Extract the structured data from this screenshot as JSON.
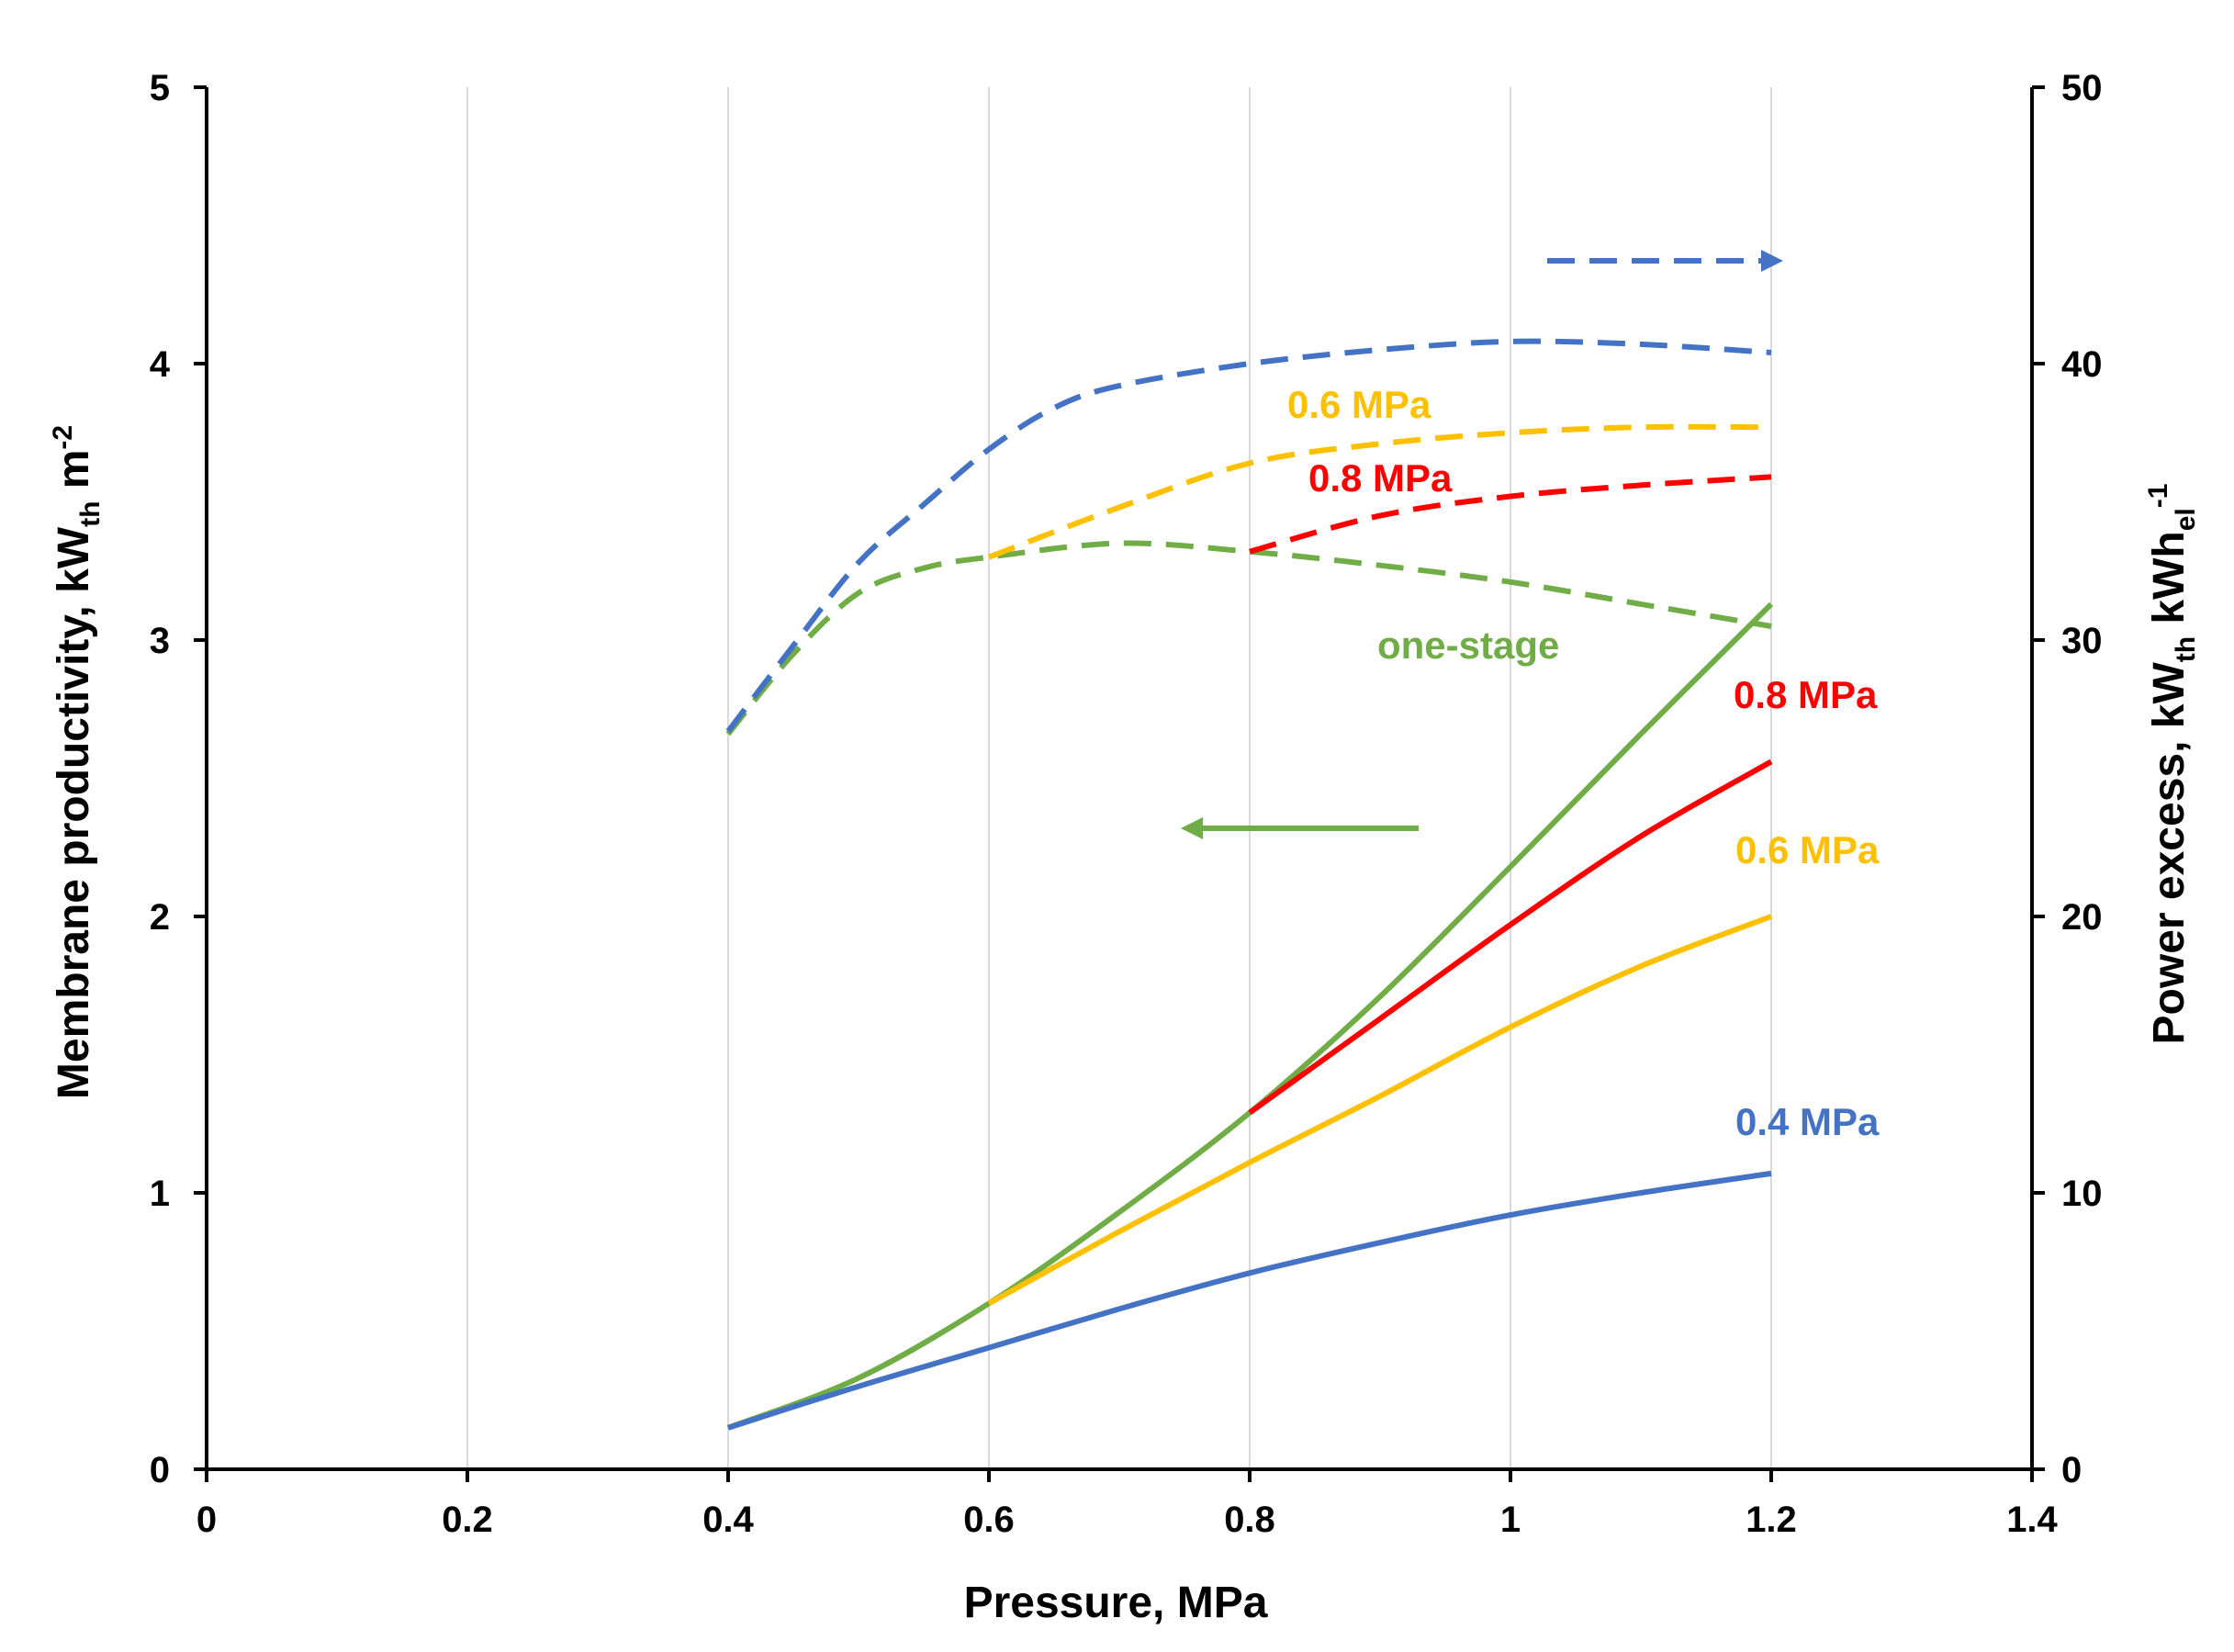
{
  "chart_data": {
    "type": "line",
    "title": "",
    "xlabel": "Pressure, MPa",
    "x_ticks": [
      "0",
      "0.2",
      "0.4",
      "0.6",
      "0.8",
      "1",
      "1.2",
      "1.4"
    ],
    "xlim": [
      0,
      1.4
    ],
    "y_left": {
      "label_main": "Membrane productivity, kW",
      "label_sub": "th",
      "label_mid": " m",
      "label_sup": "-2",
      "ylim": [
        0,
        5
      ],
      "ticks": [
        "0",
        "1",
        "2",
        "3",
        "4",
        "5"
      ]
    },
    "y_right": {
      "label_main": "Power excess, kW",
      "label_sub": "th",
      "label_mid": "  kWh",
      "label_sub2": "el",
      "label_sup": "-1",
      "ylim": [
        0,
        50
      ],
      "ticks": [
        "0",
        "10",
        "20",
        "30",
        "40",
        "50"
      ]
    },
    "grid": "vertical",
    "colors": {
      "blue": "#4472C4",
      "yellow": "#FFC000",
      "red": "#FF0000",
      "green": "#70AD47"
    },
    "series": [
      {
        "name": "0.4 MPa productivity",
        "axis": "left",
        "style": "solid",
        "color": "#4472C4",
        "x": [
          0.4,
          0.5,
          0.6,
          0.7,
          0.8,
          0.9,
          1.0,
          1.1,
          1.2
        ],
        "y": [
          0.15,
          0.3,
          0.44,
          0.58,
          0.71,
          0.82,
          0.92,
          1.0,
          1.07
        ]
      },
      {
        "name": "0.6 MPa productivity",
        "axis": "left",
        "style": "solid",
        "color": "#FFC000",
        "x": [
          0.6,
          0.7,
          0.8,
          0.9,
          1.0,
          1.1,
          1.2
        ],
        "y": [
          0.6,
          0.86,
          1.11,
          1.35,
          1.6,
          1.82,
          2.0
        ]
      },
      {
        "name": "0.8 MPa productivity",
        "axis": "left",
        "style": "solid",
        "color": "#FF0000",
        "x": [
          0.8,
          0.9,
          1.0,
          1.1,
          1.2
        ],
        "y": [
          1.29,
          1.63,
          1.97,
          2.29,
          2.56
        ]
      },
      {
        "name": "one-stage productivity",
        "axis": "left",
        "style": "solid",
        "color": "#70AD47",
        "x": [
          0.4,
          0.5,
          0.6,
          0.7,
          0.8,
          0.9,
          1.0,
          1.1,
          1.2
        ],
        "y": [
          0.15,
          0.33,
          0.6,
          0.93,
          1.29,
          1.71,
          2.18,
          2.66,
          3.13
        ]
      },
      {
        "name": "0.4 MPa power excess",
        "axis": "right",
        "style": "dashed",
        "color": "#4472C4",
        "x": [
          0.4,
          0.45,
          0.5,
          0.55,
          0.6,
          0.65,
          0.7,
          0.8,
          0.9,
          1.0,
          1.1,
          1.2
        ],
        "y": [
          26.7,
          29.8,
          32.8,
          34.9,
          36.9,
          38.4,
          39.2,
          40.0,
          40.5,
          40.8,
          40.7,
          40.4
        ]
      },
      {
        "name": "0.6 MPa power excess",
        "axis": "right",
        "style": "dashed",
        "color": "#FFC000",
        "x": [
          0.6,
          0.7,
          0.8,
          0.9,
          1.0,
          1.1,
          1.2
        ],
        "y": [
          33.0,
          34.8,
          36.4,
          37.1,
          37.5,
          37.7,
          37.7
        ]
      },
      {
        "name": "0.8 MPa power excess",
        "axis": "right",
        "style": "dashed",
        "color": "#FF0000",
        "x": [
          0.8,
          0.9,
          1.0,
          1.1,
          1.2
        ],
        "y": [
          33.2,
          34.5,
          35.2,
          35.6,
          35.9
        ]
      },
      {
        "name": "one-stage power excess",
        "axis": "right",
        "style": "dashed",
        "color": "#70AD47",
        "x": [
          0.4,
          0.45,
          0.5,
          0.55,
          0.6,
          0.7,
          0.8,
          0.9,
          1.0,
          1.1,
          1.2
        ],
        "y": [
          26.6,
          29.5,
          31.7,
          32.6,
          33.0,
          33.5,
          33.2,
          32.7,
          32.1,
          31.3,
          30.5
        ]
      }
    ],
    "annotations": [
      {
        "text": "0.6 MPa",
        "color": "#FFC000"
      },
      {
        "text": "0.8 MPa",
        "color": "#FF0000"
      },
      {
        "text": "one-stage",
        "color": "#70AD47"
      },
      {
        "text": "0.8 MPa",
        "color": "#FF0000"
      },
      {
        "text": "0.6 MPa",
        "color": "#FFC000"
      },
      {
        "text": "0.4 MPa",
        "color": "#4472C4"
      }
    ],
    "arrows": [
      {
        "meaning": "dashed curves refer to right axis",
        "color": "#4472C4",
        "direction": "right"
      },
      {
        "meaning": "solid curves refer to left axis",
        "color": "#70AD47",
        "direction": "left"
      }
    ]
  }
}
